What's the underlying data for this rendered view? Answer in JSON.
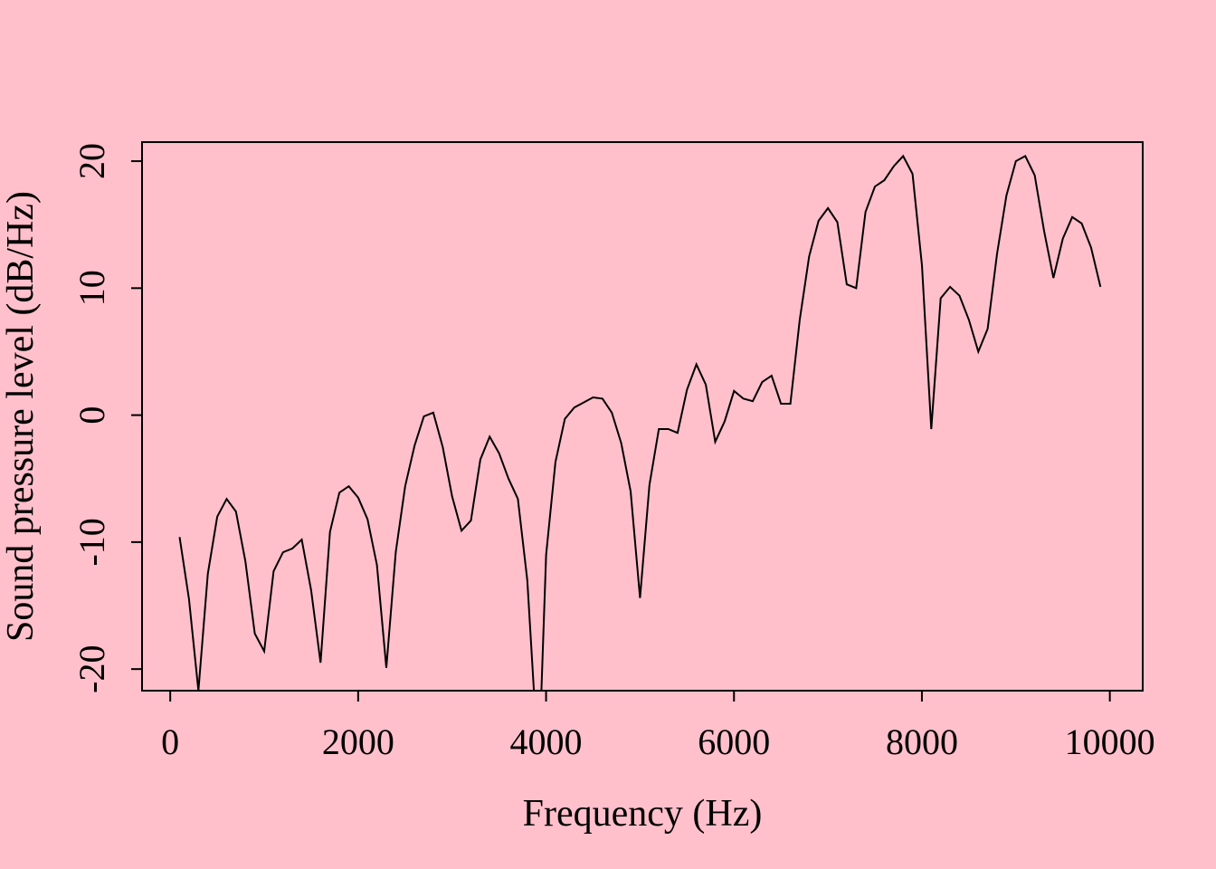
{
  "background": "#FFC0CB",
  "line_color": "#000000",
  "chart_data": {
    "type": "line",
    "title": "",
    "xlabel": "Frequency (Hz)",
    "ylabel": "Sound pressure level (dB/Hz)",
    "xlim": [
      -300,
      10350
    ],
    "ylim": [
      -21.7,
      21.5
    ],
    "x_ticks": [
      0,
      2000,
      4000,
      6000,
      8000,
      10000
    ],
    "x_tick_labels": [
      "0",
      "2000",
      "4000",
      "6000",
      "8000",
      "10000"
    ],
    "y_ticks": [
      -20,
      -10,
      0,
      10,
      20
    ],
    "y_tick_labels": [
      "-20",
      "-10",
      "0",
      "10",
      "20"
    ],
    "grid": false,
    "legend": "none",
    "series": [
      {
        "x": [
          100,
          200,
          300,
          400,
          500,
          600,
          700,
          800,
          900,
          1000,
          1100,
          1200,
          1300,
          1400,
          1500,
          1600,
          1700,
          1800,
          1900,
          2000,
          2100,
          2200,
          2300,
          2400,
          2500,
          2600,
          2700,
          2800,
          2900,
          3000,
          3100,
          3200,
          3300,
          3400,
          3500,
          3600,
          3700,
          3800,
          3870,
          3950,
          4000,
          4100,
          4200,
          4300,
          4400,
          4500,
          4600,
          4700,
          4800,
          4900,
          5000,
          5100,
          5200,
          5300,
          5400,
          5500,
          5600,
          5700,
          5800,
          5900,
          6000,
          6100,
          6200,
          6300,
          6400,
          6500,
          6600,
          6700,
          6800,
          6900,
          7000,
          7100,
          7200,
          7300,
          7400,
          7500,
          7600,
          7700,
          7800,
          7900,
          8000,
          8100,
          8200,
          8300,
          8400,
          8500,
          8600,
          8700,
          8800,
          8900,
          9000,
          9100,
          9200,
          9300,
          9400,
          9500,
          9600,
          9700,
          9800,
          9900
        ],
        "y": [
          -9.6,
          -14.5,
          -21.7,
          -12.5,
          -8.0,
          -6.6,
          -7.6,
          -11.5,
          -17.2,
          -18.6,
          -12.3,
          -10.8,
          -10.5,
          -9.8,
          -13.8,
          -19.5,
          -9.2,
          -6.1,
          -5.6,
          -6.5,
          -8.2,
          -11.8,
          -19.9,
          -10.8,
          -5.6,
          -2.4,
          -0.1,
          0.2,
          -2.5,
          -6.4,
          -9.1,
          -8.3,
          -3.5,
          -1.7,
          -3.0,
          -5.0,
          -6.6,
          -13.0,
          -21.7,
          -21.7,
          -11.0,
          -3.7,
          -0.3,
          0.6,
          1.0,
          1.4,
          1.3,
          0.2,
          -2.2,
          -6.0,
          -14.4,
          -5.5,
          -1.1,
          -1.1,
          -1.4,
          2.0,
          4.0,
          2.4,
          -2.1,
          -0.5,
          1.9,
          1.3,
          1.1,
          2.6,
          3.1,
          0.9,
          0.9,
          7.5,
          12.5,
          15.3,
          16.3,
          15.2,
          10.3,
          10.0,
          16.0,
          18.0,
          18.5,
          19.6,
          20.4,
          19.0,
          11.8,
          -1.1,
          9.2,
          10.1,
          9.4,
          7.5,
          5.0,
          6.8,
          12.7,
          17.3,
          20.0,
          20.4,
          18.9,
          14.5,
          10.8,
          13.9,
          15.6,
          15.1,
          13.2,
          10.1
        ]
      }
    ]
  }
}
